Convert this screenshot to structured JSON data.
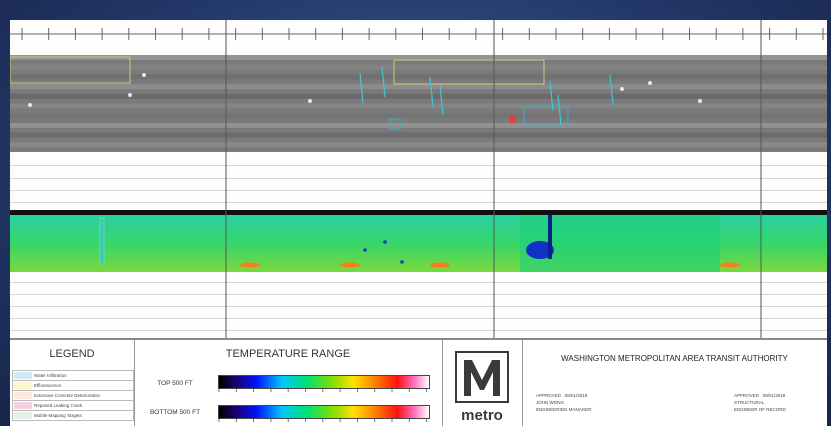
{
  "legend": {
    "title": "LEGEND",
    "items": [
      {
        "label": "Water Infiltration",
        "color": "#cfeaf7"
      },
      {
        "label": "Efflorescence",
        "color": "#fff6cf"
      },
      {
        "label": "Extensive Concrete Deterioration",
        "color": "#fde6da"
      },
      {
        "label": "Repaired Leaking Crack",
        "color": "#f7cfe0"
      },
      {
        "label": "Mobile Mapping Targets",
        "color": "#e6f2e6"
      }
    ]
  },
  "temperature": {
    "title": "TEMPERATURE RANGE",
    "top_label": "TOP 500 FT",
    "bottom_label": "BOTTOM 500 FT"
  },
  "logo": {
    "word": "metro",
    "letter": "M"
  },
  "authority": {
    "title": "WASHINGTON METROPOLITAN AREA TRANSIT AUTHORITY",
    "left": {
      "approved": "APPROVED",
      "date": "08/01/2018",
      "name": "JOHN WONG",
      "role": "ENGINEERING MANAGER"
    },
    "right": {
      "approved": "APPROVED",
      "date": "08/01/2018",
      "name": "STRUCTURAL",
      "role": "ENGINEER OF RECORD"
    }
  },
  "colors": {
    "background": "#243a6c",
    "sheet": "#fdfdfd",
    "scan_gray": "#7a7a7a",
    "ir_green": "#36d66a",
    "ir_blue": "#1030c8",
    "logo": "#3a3a3a"
  }
}
